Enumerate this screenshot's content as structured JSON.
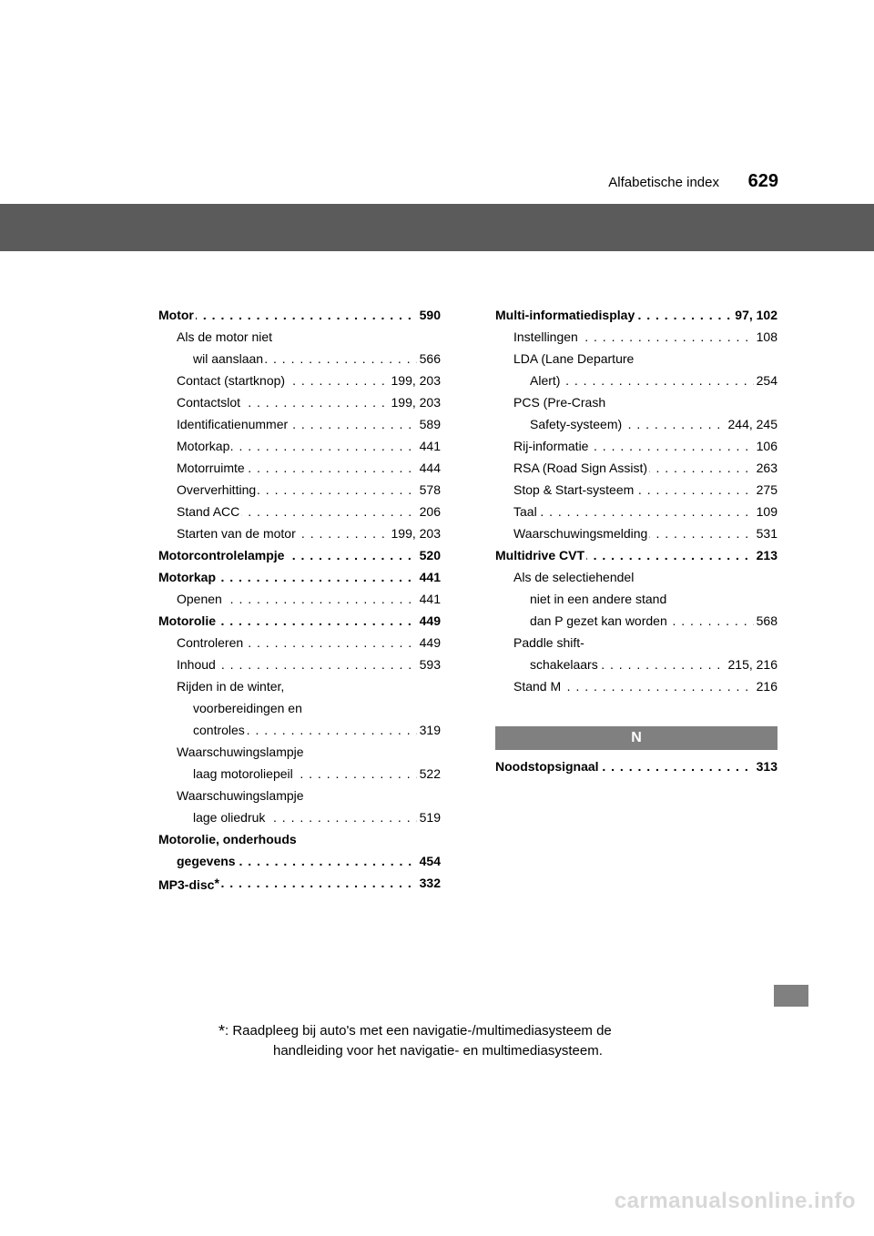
{
  "header": {
    "title": "Alfabetische index",
    "page_number": "629"
  },
  "colors": {
    "header_bar": "#5b5b5b",
    "section_bg": "#808080",
    "section_text": "#ffffff",
    "tab_marker": "#808080",
    "watermark": "#d8d8d8",
    "text": "#000000",
    "background": "#ffffff"
  },
  "left_col": [
    {
      "label": "Motor",
      "page": "590",
      "bold": true,
      "indent": 0
    },
    {
      "label": "Als de motor niet",
      "page": "",
      "bold": false,
      "indent": 1,
      "nodots": true
    },
    {
      "label": "wil aanslaan",
      "page": "566",
      "bold": false,
      "indent": 2
    },
    {
      "label": "Contact (startknop)",
      "page": "199, 203",
      "bold": false,
      "indent": 1
    },
    {
      "label": "Contactslot",
      "page": "199, 203",
      "bold": false,
      "indent": 1
    },
    {
      "label": "Identificatienummer",
      "page": "589",
      "bold": false,
      "indent": 1
    },
    {
      "label": "Motorkap",
      "page": "441",
      "bold": false,
      "indent": 1
    },
    {
      "label": "Motorruimte",
      "page": "444",
      "bold": false,
      "indent": 1
    },
    {
      "label": "Oververhitting",
      "page": "578",
      "bold": false,
      "indent": 1
    },
    {
      "label": "Stand ACC",
      "page": "206",
      "bold": false,
      "indent": 1
    },
    {
      "label": "Starten van de motor",
      "page": "199, 203",
      "bold": false,
      "indent": 1
    },
    {
      "label": "Motorcontrolelampje",
      "page": "520",
      "bold": true,
      "indent": 0
    },
    {
      "label": "Motorkap",
      "page": "441",
      "bold": true,
      "indent": 0
    },
    {
      "label": "Openen",
      "page": "441",
      "bold": false,
      "indent": 1
    },
    {
      "label": "Motorolie",
      "page": "449",
      "bold": true,
      "indent": 0
    },
    {
      "label": "Controleren",
      "page": "449",
      "bold": false,
      "indent": 1
    },
    {
      "label": "Inhoud",
      "page": "593",
      "bold": false,
      "indent": 1
    },
    {
      "label": "Rijden in de winter,",
      "page": "",
      "bold": false,
      "indent": 1,
      "nodots": true
    },
    {
      "label": "voorbereidingen en",
      "page": "",
      "bold": false,
      "indent": 2,
      "nodots": true
    },
    {
      "label": "controles",
      "page": "319",
      "bold": false,
      "indent": 2
    },
    {
      "label": "Waarschuwingslampje",
      "page": "",
      "bold": false,
      "indent": 1,
      "nodots": true
    },
    {
      "label": "laag motoroliepeil",
      "page": "522",
      "bold": false,
      "indent": 2
    },
    {
      "label": "Waarschuwingslampje",
      "page": "",
      "bold": false,
      "indent": 1,
      "nodots": true
    },
    {
      "label": "lage oliedruk",
      "page": "519",
      "bold": false,
      "indent": 2
    },
    {
      "label": "Motorolie, onderhouds",
      "page": "",
      "bold": true,
      "indent": 0,
      "nodots": true
    },
    {
      "label": "gegevens",
      "page": "454",
      "bold": true,
      "indent": 1
    },
    {
      "label": "MP3-disc*",
      "page": "332",
      "bold": true,
      "indent": 0,
      "star": true
    }
  ],
  "right_col": [
    {
      "label": "Multi-informatiedisplay",
      "page": "97, 102",
      "bold": true,
      "indent": 0
    },
    {
      "label": "Instellingen",
      "page": "108",
      "bold": false,
      "indent": 1
    },
    {
      "label": "LDA (Lane Departure",
      "page": "",
      "bold": false,
      "indent": 1,
      "nodots": true
    },
    {
      "label": "Alert)",
      "page": "254",
      "bold": false,
      "indent": 2
    },
    {
      "label": "PCS (Pre-Crash",
      "page": "",
      "bold": false,
      "indent": 1,
      "nodots": true
    },
    {
      "label": "Safety-systeem)",
      "page": "244, 245",
      "bold": false,
      "indent": 2
    },
    {
      "label": "Rij-informatie",
      "page": "106",
      "bold": false,
      "indent": 1
    },
    {
      "label": "RSA (Road Sign Assist)",
      "page": "263",
      "bold": false,
      "indent": 1
    },
    {
      "label": "Stop & Start-systeem",
      "page": "275",
      "bold": false,
      "indent": 1
    },
    {
      "label": "Taal",
      "page": "109",
      "bold": false,
      "indent": 1
    },
    {
      "label": "Waarschuwingsmelding",
      "page": "531",
      "bold": false,
      "indent": 1
    },
    {
      "label": "Multidrive CVT",
      "page": "213",
      "bold": true,
      "indent": 0
    },
    {
      "label": "Als de selectiehendel",
      "page": "",
      "bold": false,
      "indent": 1,
      "nodots": true
    },
    {
      "label": "niet in een andere stand",
      "page": "",
      "bold": false,
      "indent": 2,
      "nodots": true
    },
    {
      "label": "dan P gezet kan worden",
      "page": "568",
      "bold": false,
      "indent": 2
    },
    {
      "label": "Paddle shift-",
      "page": "",
      "bold": false,
      "indent": 1,
      "nodots": true
    },
    {
      "label": "schakelaars",
      "page": "215, 216",
      "bold": false,
      "indent": 2
    },
    {
      "label": "Stand M",
      "page": "216",
      "bold": false,
      "indent": 1
    }
  ],
  "section_n": {
    "letter": "N",
    "entries": [
      {
        "label": "Noodstopsignaal",
        "page": "313",
        "bold": true,
        "indent": 0
      }
    ]
  },
  "footnote": {
    "line1": ": Raadpleeg bij auto's met een navigatie-/multimediasysteem de",
    "line2": "handleiding voor het navigatie- en multimediasysteem."
  },
  "watermark": "carmanualsonline.info"
}
